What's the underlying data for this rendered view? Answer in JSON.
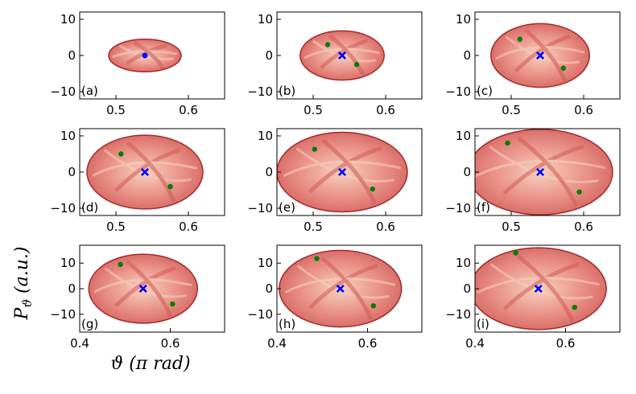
{
  "figure": {
    "ylabel": "P_ϑ (a.u.)",
    "xlabel": "ϑ (π rad)"
  },
  "colors": {
    "fill_base": "#e98f86",
    "fill_dark": "#cf5c58",
    "fill_light": "#f6d2c0",
    "edge": "#a52a2a",
    "marker_center": "#0000ff",
    "marker_point": "#008000"
  },
  "chart_data": [
    {
      "type": "scatter",
      "label": "(a)",
      "xlim": [
        0.45,
        0.65
      ],
      "ylim": [
        -12,
        12
      ],
      "xticks": [
        0.5,
        0.6
      ],
      "xtick_labels": [
        "0.5",
        "0.6"
      ],
      "yticks": [
        10,
        0,
        -10
      ],
      "ytick_labels": [
        "10",
        "0",
        "−10"
      ],
      "region": {
        "cx": 0.54,
        "cy": 0,
        "rx": 0.05,
        "ry": 4.5
      },
      "center": {
        "x": 0.54,
        "y": 0,
        "marker": "dot"
      },
      "points": []
    },
    {
      "type": "scatter",
      "label": "(b)",
      "xlim": [
        0.45,
        0.65
      ],
      "ylim": [
        -12,
        12
      ],
      "xticks": [
        0.5,
        0.6
      ],
      "xtick_labels": [
        "0.5",
        "0.6"
      ],
      "yticks": [
        10,
        0,
        -10
      ],
      "ytick_labels": [
        "10",
        "0",
        "−10"
      ],
      "region": {
        "cx": 0.54,
        "cy": 0,
        "rx": 0.058,
        "ry": 6.8
      },
      "center": {
        "x": 0.54,
        "y": 0,
        "marker": "x"
      },
      "points": [
        {
          "x": 0.52,
          "y": 3.0
        },
        {
          "x": 0.56,
          "y": -2.5
        }
      ]
    },
    {
      "type": "scatter",
      "label": "(c)",
      "xlim": [
        0.45,
        0.65
      ],
      "ylim": [
        -12,
        12
      ],
      "xticks": [
        0.5,
        0.6
      ],
      "xtick_labels": [
        "0.5",
        "0.6"
      ],
      "yticks": [
        10,
        0,
        -10
      ],
      "ytick_labels": [
        "10",
        "0",
        "−10"
      ],
      "region": {
        "cx": 0.54,
        "cy": 0,
        "rx": 0.068,
        "ry": 8.8
      },
      "center": {
        "x": 0.54,
        "y": 0,
        "marker": "x"
      },
      "points": [
        {
          "x": 0.512,
          "y": 4.5
        },
        {
          "x": 0.572,
          "y": -3.5
        }
      ]
    },
    {
      "type": "scatter",
      "label": "(d)",
      "xlim": [
        0.45,
        0.65
      ],
      "ylim": [
        -12,
        12
      ],
      "xticks": [
        0.5,
        0.6
      ],
      "xtick_labels": [
        "0.5",
        "0.6"
      ],
      "yticks": [
        10,
        0,
        -10
      ],
      "ytick_labels": [
        "10",
        "0",
        "−10"
      ],
      "region": {
        "cx": 0.54,
        "cy": 0,
        "rx": 0.08,
        "ry": 10.2
      },
      "center": {
        "x": 0.54,
        "y": 0,
        "marker": "x"
      },
      "points": [
        {
          "x": 0.507,
          "y": 5.0
        },
        {
          "x": 0.575,
          "y": -4.0
        }
      ]
    },
    {
      "type": "scatter",
      "label": "(e)",
      "xlim": [
        0.45,
        0.65
      ],
      "ylim": [
        -12,
        12
      ],
      "xticks": [
        0.5,
        0.6
      ],
      "xtick_labels": [
        "0.5",
        "0.6"
      ],
      "yticks": [
        10,
        0,
        -10
      ],
      "ytick_labels": [
        "10",
        "0",
        "−10"
      ],
      "region": {
        "cx": 0.54,
        "cy": 0,
        "rx": 0.09,
        "ry": 11.0
      },
      "center": {
        "x": 0.54,
        "y": 0,
        "marker": "x"
      },
      "points": [
        {
          "x": 0.502,
          "y": 6.3
        },
        {
          "x": 0.582,
          "y": -4.7
        }
      ]
    },
    {
      "type": "scatter",
      "label": "(f)",
      "xlim": [
        0.45,
        0.65
      ],
      "ylim": [
        -12,
        12
      ],
      "xticks": [
        0.5,
        0.6
      ],
      "xtick_labels": [
        "0.5",
        "0.6"
      ],
      "yticks": [
        10,
        0,
        -10
      ],
      "ytick_labels": [
        "10",
        "0",
        "−10"
      ],
      "region": {
        "cx": 0.54,
        "cy": 0,
        "rx": 0.1,
        "ry": 11.8
      },
      "center": {
        "x": 0.54,
        "y": 0,
        "marker": "x"
      },
      "points": [
        {
          "x": 0.495,
          "y": 8.0
        },
        {
          "x": 0.594,
          "y": -5.5
        }
      ]
    },
    {
      "type": "scatter",
      "label": "(g)",
      "xlim": [
        0.4,
        0.72
      ],
      "ylim": [
        -17,
        17
      ],
      "xticks": [
        0.4,
        0.6
      ],
      "xtick_labels": [
        "0.4",
        "0.6"
      ],
      "yticks": [
        10,
        0,
        -10
      ],
      "ytick_labels": [
        "10",
        "0",
        "−10"
      ],
      "region": {
        "cx": 0.54,
        "cy": 0,
        "rx": 0.12,
        "ry": 13.5
      },
      "center": {
        "x": 0.54,
        "y": 0,
        "marker": "x"
      },
      "points": [
        {
          "x": 0.49,
          "y": 9.5
        },
        {
          "x": 0.605,
          "y": -6.0
        }
      ]
    },
    {
      "type": "scatter",
      "label": "(h)",
      "xlim": [
        0.4,
        0.72
      ],
      "ylim": [
        -17,
        17
      ],
      "xticks": [
        0.4,
        0.6
      ],
      "xtick_labels": [
        "0.4",
        "0.6"
      ],
      "yticks": [
        10,
        0,
        -10
      ],
      "ytick_labels": [
        "10",
        "0",
        "−10"
      ],
      "region": {
        "cx": 0.54,
        "cy": 0,
        "rx": 0.135,
        "ry": 15.0
      },
      "center": {
        "x": 0.54,
        "y": 0,
        "marker": "x"
      },
      "points": [
        {
          "x": 0.488,
          "y": 11.8
        },
        {
          "x": 0.613,
          "y": -6.7
        }
      ]
    },
    {
      "type": "scatter",
      "label": "(i)",
      "xlim": [
        0.4,
        0.72
      ],
      "ylim": [
        -17,
        17
      ],
      "xticks": [
        0.4,
        0.6
      ],
      "xtick_labels": [
        "0.4",
        "0.6"
      ],
      "yticks": [
        10,
        0,
        -10
      ],
      "ytick_labels": [
        "10",
        "0",
        "−10"
      ],
      "region": {
        "cx": 0.54,
        "cy": 0,
        "rx": 0.15,
        "ry": 16.0
      },
      "center": {
        "x": 0.54,
        "y": 0,
        "marker": "x"
      },
      "points": [
        {
          "x": 0.49,
          "y": 14.0
        },
        {
          "x": 0.62,
          "y": -7.3
        }
      ]
    }
  ]
}
